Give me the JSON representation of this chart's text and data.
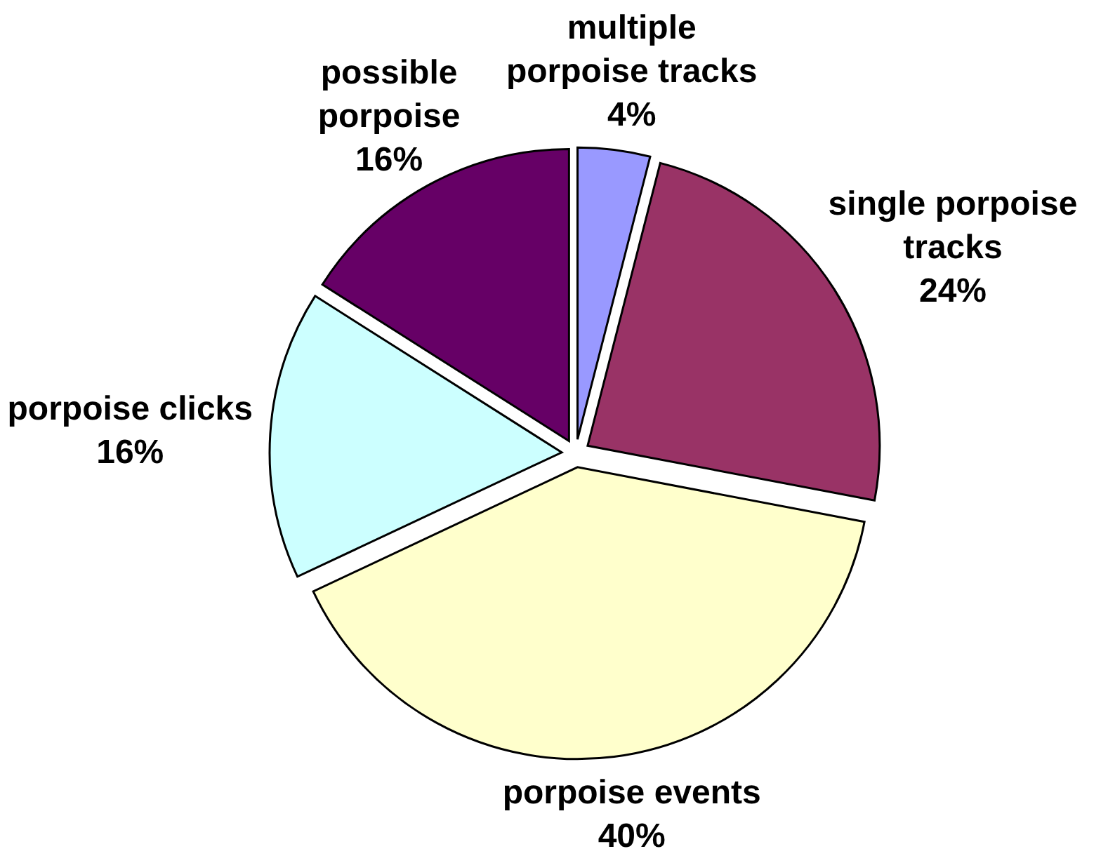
{
  "chart_data": {
    "type": "pie",
    "categories": [
      "multiple porpoise tracks",
      "single porpoise tracks",
      "porpoise events",
      "porpoise clicks",
      "possible porpoise"
    ],
    "values": [
      4,
      24,
      40,
      16,
      16
    ],
    "value_labels": [
      "4%",
      "24%",
      "40%",
      "16%",
      "16%"
    ],
    "colors": [
      "#9999ff",
      "#993366",
      "#ffffcc",
      "#ccffff",
      "#660066"
    ]
  }
}
